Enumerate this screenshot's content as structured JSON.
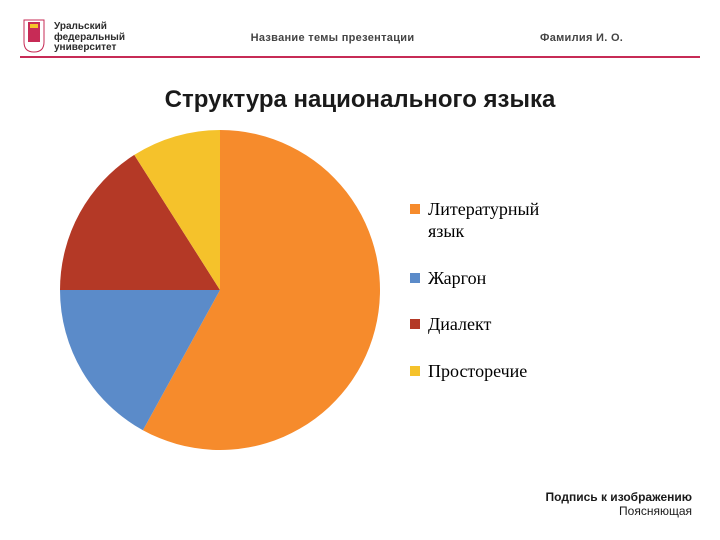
{
  "colors": {
    "rule": "#c72b56",
    "text_dark": "#1a1a1a"
  },
  "header": {
    "logo_line1": "Уральский",
    "logo_line2": "федеральный",
    "logo_line3": "университет",
    "center": "Название темы презентации",
    "right": "Фамилия И. О."
  },
  "title": {
    "text": "Структура национального языка",
    "fontsize": 24,
    "color": "#1a1a1a"
  },
  "chart": {
    "type": "pie",
    "background_color": "#ffffff",
    "diameter": 320,
    "start_angle_deg": -90,
    "slices": [
      {
        "label": "Литературный\nязык",
        "value": 58,
        "color": "#f68b2c"
      },
      {
        "label": "Жаргон",
        "value": 17,
        "color": "#5b8bc9"
      },
      {
        "label": "Диалект",
        "value": 16,
        "color": "#b43926"
      },
      {
        "label": "Просторечие",
        "value": 9,
        "color": "#f5c22b"
      }
    ],
    "legend": {
      "font_family": "Times New Roman, serif",
      "fontsize": 18,
      "swatch_size": 10
    }
  },
  "caption": {
    "line1": "Подпись к изображению",
    "line2": "Поясняющая",
    "fontsize": 12,
    "color": "#1a1a1a"
  },
  "logo_mark": {
    "stroke_color": "#c72b56",
    "fill_color": "#f5c22b",
    "width": 28,
    "height": 36
  }
}
